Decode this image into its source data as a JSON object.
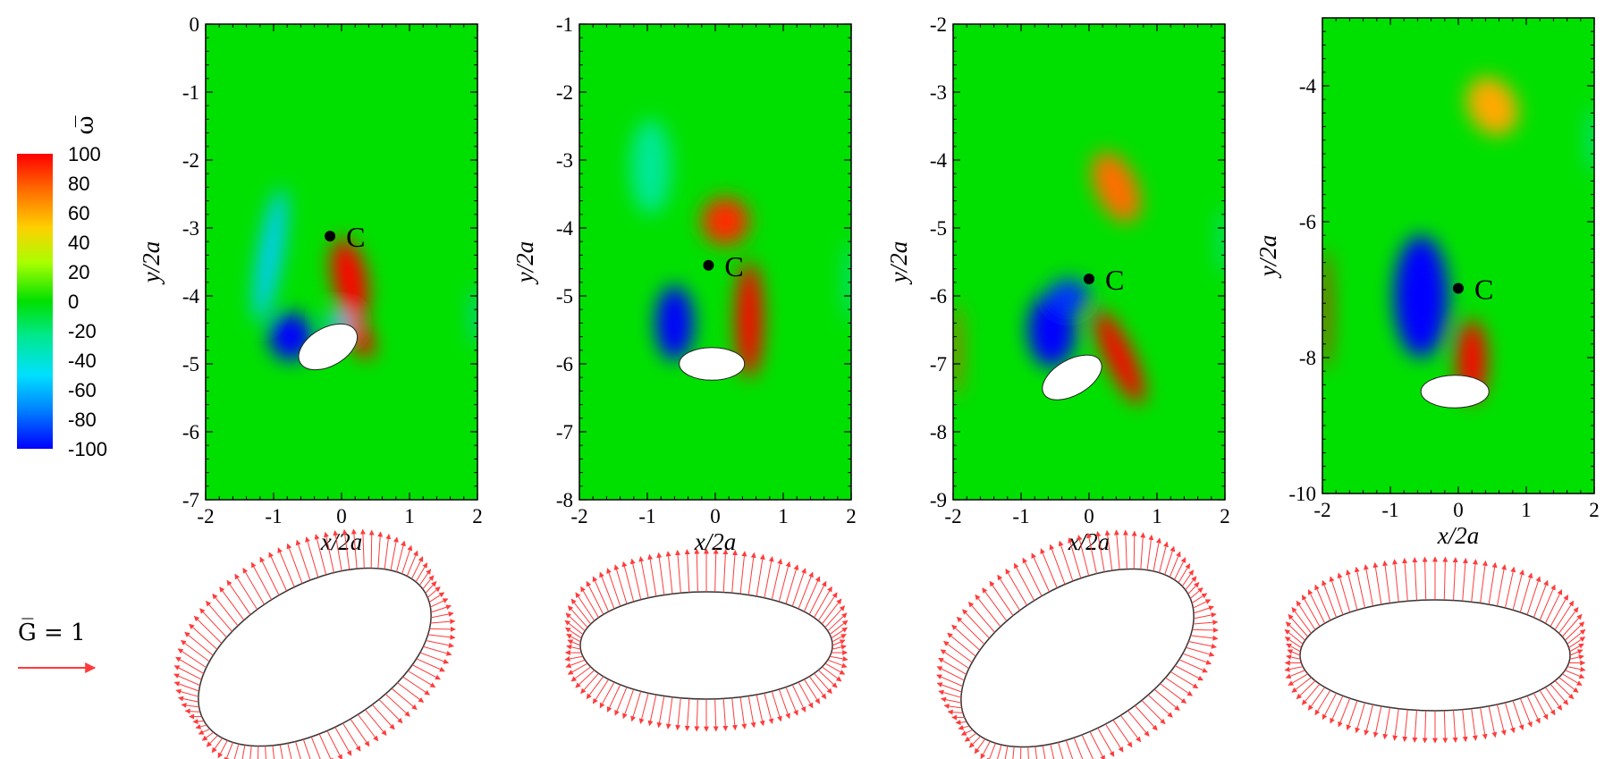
{
  "chart_data": {
    "type": "heatmap",
    "colorbar": {
      "label": "ω̅",
      "min": -100,
      "max": 100,
      "ticks": [
        "100",
        "80",
        "60",
        "40",
        "20",
        "0",
        "-20",
        "-40",
        "-60",
        "-80",
        "-100"
      ]
    },
    "vector_legend": {
      "label": "G̅ = 1",
      "color": "#ff3b3b"
    },
    "xlabel": "x/2a",
    "ylabel": "y/2a",
    "marker_label": "C",
    "panels": [
      {
        "xlim": [
          -2,
          2
        ],
        "ylim": [
          -7,
          0
        ],
        "x_ticks": [
          "-2",
          "-1",
          "0",
          "1",
          "2"
        ],
        "y_ticks": [
          "0",
          "-1",
          "-2",
          "-3",
          "-4",
          "-5",
          "-6",
          "-7"
        ],
        "body": {
          "cx": -0.2,
          "cy": -4.75,
          "rx": 0.47,
          "ry": 0.28,
          "angle_deg": -30
        },
        "marker": {
          "x": -0.17,
          "y": -3.12
        },
        "vortices": [
          {
            "cx": -1.05,
            "cy": -3.4,
            "sx": 0.17,
            "sy": 1.0,
            "value": -55,
            "angle": 10
          },
          {
            "cx": -0.75,
            "cy": -4.6,
            "sx": 0.32,
            "sy": 0.35,
            "value": -100,
            "angle": 0
          },
          {
            "cx": 0.12,
            "cy": -3.75,
            "sx": 0.25,
            "sy": 0.6,
            "value": 100,
            "angle": -12
          },
          {
            "cx": 0.25,
            "cy": -4.55,
            "sx": 0.16,
            "sy": 0.4,
            "value": 100,
            "angle": -25
          },
          {
            "cx": -0.05,
            "cy": -4.4,
            "sx": 0.2,
            "sy": 0.15,
            "value": -60,
            "angle": 0
          },
          {
            "cx": 1.98,
            "cy": -4.3,
            "sx": 0.05,
            "sy": 0.45,
            "value": -55,
            "angle": 0
          }
        ]
      },
      {
        "xlim": [
          -2,
          2
        ],
        "ylim": [
          -8,
          -1
        ],
        "x_ticks": [
          "-2",
          "-1",
          "0",
          "1",
          "2"
        ],
        "y_ticks": [
          "-1",
          "-2",
          "-3",
          "-4",
          "-5",
          "-6",
          "-7",
          "-8"
        ],
        "body": {
          "cx": -0.05,
          "cy": -6.0,
          "rx": 0.48,
          "ry": 0.24,
          "angle_deg": 0
        },
        "marker": {
          "x": -0.1,
          "y": -4.55
        },
        "vortices": [
          {
            "cx": -0.95,
            "cy": -3.1,
            "sx": 0.3,
            "sy": 0.7,
            "value": -25,
            "angle": 0
          },
          {
            "cx": -0.6,
            "cy": -5.4,
            "sx": 0.28,
            "sy": 0.55,
            "value": -100,
            "angle": 0
          },
          {
            "cx": 0.15,
            "cy": -3.9,
            "sx": 0.35,
            "sy": 0.35,
            "value": 90,
            "angle": -30
          },
          {
            "cx": 0.5,
            "cy": -5.35,
            "sx": 0.2,
            "sy": 0.85,
            "value": 100,
            "angle": 0
          },
          {
            "cx": 1.98,
            "cy": -4.8,
            "sx": 0.05,
            "sy": 0.6,
            "value": -45,
            "angle": 0
          }
        ]
      },
      {
        "xlim": [
          -2,
          2
        ],
        "ylim": [
          -9,
          -2
        ],
        "x_ticks": [
          "-2",
          "-1",
          "0",
          "1",
          "2"
        ],
        "y_ticks": [
          "-2",
          "-3",
          "-4",
          "-5",
          "-6",
          "-7",
          "-8",
          "-9"
        ],
        "body": {
          "cx": -0.25,
          "cy": -7.2,
          "rx": 0.48,
          "ry": 0.26,
          "angle_deg": -30
        },
        "marker": {
          "x": 0.0,
          "y": -5.75
        },
        "vortices": [
          {
            "cx": 0.4,
            "cy": -4.4,
            "sx": 0.3,
            "sy": 0.55,
            "value": 75,
            "angle": -25
          },
          {
            "cx": -0.55,
            "cy": -6.5,
            "sx": 0.35,
            "sy": 0.55,
            "value": -100,
            "angle": 0
          },
          {
            "cx": -0.3,
            "cy": -6.0,
            "sx": 0.3,
            "sy": 0.25,
            "value": -90,
            "angle": 0
          },
          {
            "cx": 0.45,
            "cy": -6.9,
            "sx": 0.2,
            "sy": 0.75,
            "value": 100,
            "angle": -25
          },
          {
            "cx": -1.95,
            "cy": -6.8,
            "sx": 0.06,
            "sy": 0.7,
            "value": 85,
            "angle": 0
          },
          {
            "cx": 1.98,
            "cy": -5.2,
            "sx": 0.05,
            "sy": 0.5,
            "value": -40,
            "angle": 0
          }
        ]
      },
      {
        "xlim": [
          -2,
          2
        ],
        "ylim": [
          -10,
          -3
        ],
        "x_ticks": [
          "-2",
          "-1",
          "0",
          "1",
          "2"
        ],
        "y_ticks": [
          "-4",
          "-6",
          "-8",
          "-10"
        ],
        "body": {
          "cx": -0.05,
          "cy": -8.5,
          "rx": 0.5,
          "ry": 0.24,
          "angle_deg": 0
        },
        "marker": {
          "x": 0.0,
          "y": -6.98
        },
        "vortices": [
          {
            "cx": 0.5,
            "cy": -4.3,
            "sx": 0.35,
            "sy": 0.45,
            "value": 60,
            "angle": -30
          },
          {
            "cx": -0.55,
            "cy": -7.1,
            "sx": 0.4,
            "sy": 0.9,
            "value": -100,
            "angle": 0
          },
          {
            "cx": 0.2,
            "cy": -8.05,
            "sx": 0.22,
            "sy": 0.6,
            "value": 100,
            "angle": 0
          },
          {
            "cx": -1.95,
            "cy": -7.3,
            "sx": 0.06,
            "sy": 0.9,
            "value": 100,
            "angle": 0
          },
          {
            "cx": 1.98,
            "cy": -4.8,
            "sx": 0.05,
            "sy": 0.5,
            "value": -45,
            "angle": 0
          }
        ]
      }
    ],
    "force_ellipses": [
      {
        "angle_deg": -30
      },
      {
        "angle_deg": 0
      },
      {
        "angle_deg": -30
      },
      {
        "angle_deg": 0
      }
    ]
  }
}
